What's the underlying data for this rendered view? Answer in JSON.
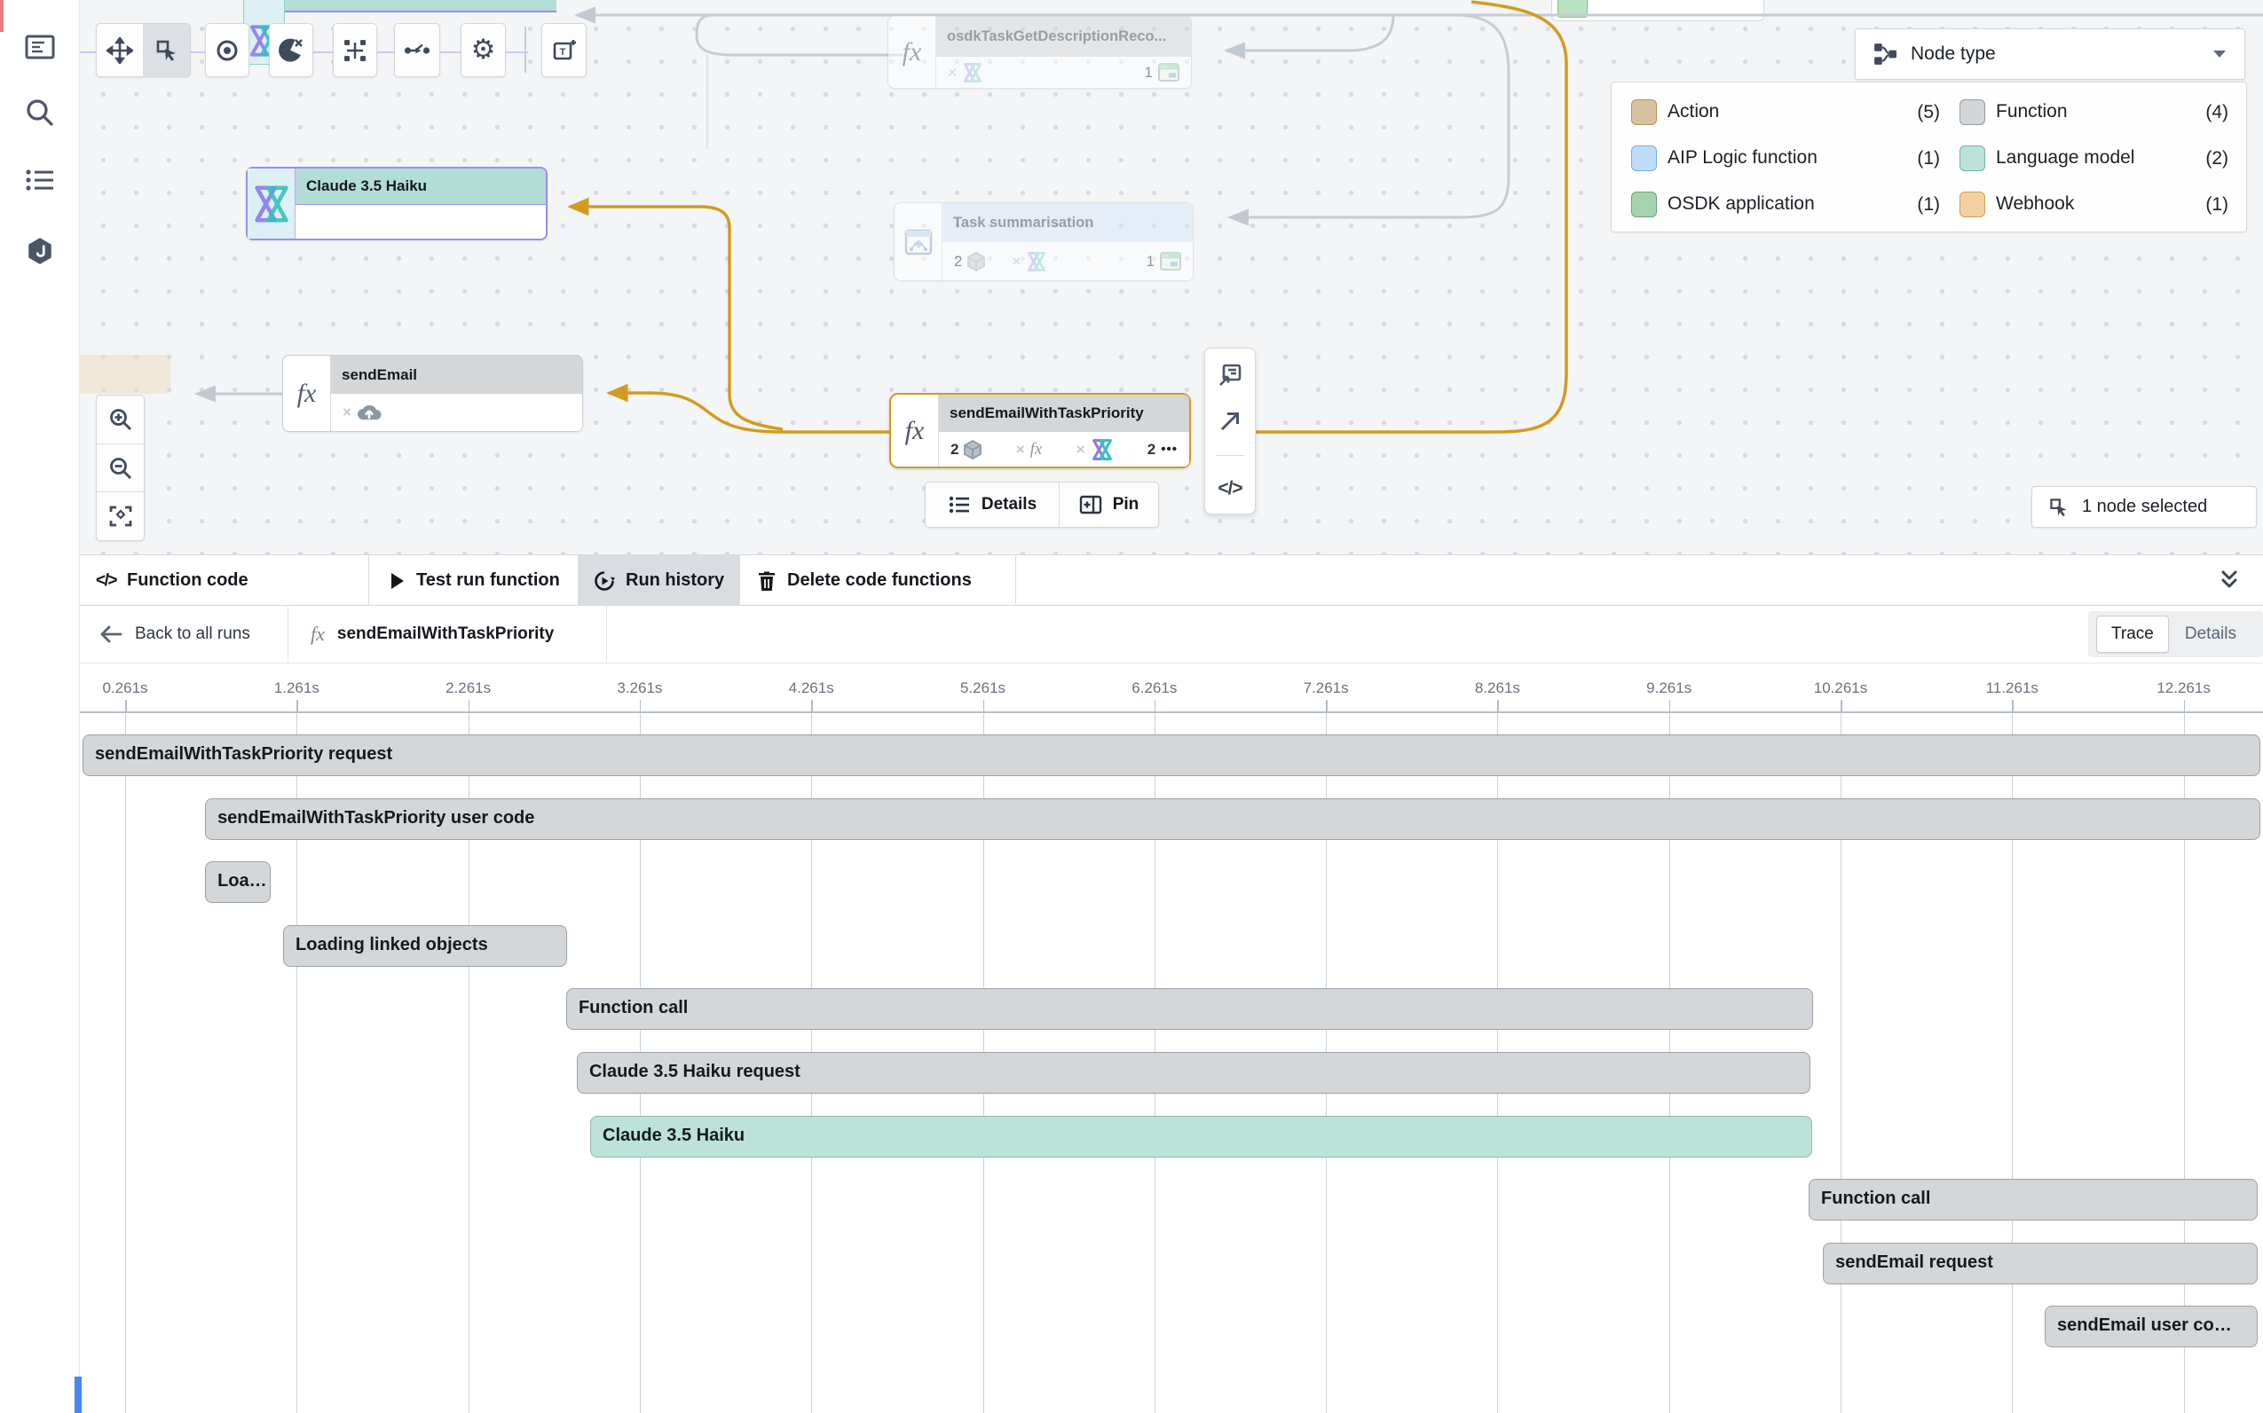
{
  "glyphs": {
    "multiply": "×",
    "ellipsis": "•••",
    "fx": "fx",
    "code": "</>"
  },
  "canvas": {
    "nodes": {
      "claude": {
        "title": "Claude 3.5 Haiku"
      },
      "osdk": {
        "title": "osdkTaskGetDescriptionReco...",
        "right_count": "1"
      },
      "task": {
        "title": "Task summarisation",
        "left_count": "2",
        "right_count": "1"
      },
      "send_email": {
        "title": "sendEmail"
      },
      "priority": {
        "title": "sendEmailWithTaskPriority",
        "left_count": "2",
        "right_count": "2"
      }
    },
    "node_actions": {
      "details": "Details",
      "pin": "Pin"
    },
    "selection_status": "1 node selected",
    "node_type_label": "Node type",
    "legend": {
      "col1": [
        {
          "label": "Action",
          "count": "(5)",
          "color": "#d9c39e",
          "border": "#b1925f"
        },
        {
          "label": "AIP Logic function",
          "count": "(1)",
          "color": "#bfdcfa",
          "border": "#79aee3"
        },
        {
          "label": "OSDK application",
          "count": "(1)",
          "color": "#a6d3ae",
          "border": "#67a374"
        }
      ],
      "col2": [
        {
          "label": "Function",
          "count": "(4)",
          "color": "#d3d6d9",
          "border": "#939ba4"
        },
        {
          "label": "Language model",
          "count": "(2)",
          "color": "#bce2d9",
          "border": "#73b2a3"
        },
        {
          "label": "Webhook",
          "count": "(1)",
          "color": "#f3d1a2",
          "border": "#cf9c55"
        }
      ]
    },
    "edge_colors": {
      "active": "#d39b1d",
      "inactive": "#c3c9d1"
    }
  },
  "panel": {
    "tabs": {
      "function_code": "Function code",
      "test_run": "Test run function",
      "run_history": "Run history",
      "delete": "Delete code functions"
    },
    "back": "Back to all runs",
    "function_name": "sendEmailWithTaskPriority",
    "view_toggle": {
      "trace": "Trace",
      "details": "Details"
    }
  },
  "chart_data": {
    "type": "gantt",
    "description": "Function run trace timeline (waterfall of spans)",
    "time_unit": "s",
    "axis": {
      "tick_seconds": [
        0.261,
        1.261,
        2.261,
        3.261,
        4.261,
        5.261,
        6.261,
        7.261,
        8.261,
        9.261,
        10.261,
        11.261,
        12.261
      ],
      "tick_labels": [
        "0.261s",
        "1.261s",
        "2.261s",
        "3.261s",
        "4.261s",
        "5.261s",
        "6.261s",
        "7.261s",
        "8.261s",
        "9.261s",
        "10.261s",
        "11.261s",
        "12.261s"
      ],
      "grid": true
    },
    "spans": [
      {
        "label": "sendEmailWithTaskPriority request",
        "start_s": 0.013,
        "end_s": 12.7,
        "kind": "default"
      },
      {
        "label": "sendEmailWithTaskPriority user code",
        "start_s": 0.727,
        "end_s": 12.7,
        "kind": "default"
      },
      {
        "label": "Loa…",
        "start_s": 0.727,
        "end_s": 1.1,
        "kind": "default"
      },
      {
        "label": "Loading linked objects",
        "start_s": 1.182,
        "end_s": 2.827,
        "kind": "default"
      },
      {
        "label": "Function call",
        "start_s": 2.832,
        "end_s": 10.091,
        "kind": "default"
      },
      {
        "label": "Claude 3.5 Haiku request",
        "start_s": 2.894,
        "end_s": 10.075,
        "kind": "default"
      },
      {
        "label": "Claude 3.5 Haiku",
        "start_s": 2.972,
        "end_s": 10.085,
        "kind": "highlight"
      },
      {
        "label": "Function call",
        "start_s": 10.075,
        "end_s": 12.683,
        "kind": "default"
      },
      {
        "label": "sendEmail request",
        "start_s": 10.158,
        "end_s": 12.683,
        "kind": "default"
      },
      {
        "label": "sendEmail user co…",
        "start_s": 11.451,
        "end_s": 12.683,
        "kind": "default"
      }
    ],
    "colors": {
      "default": "#d4d6d8",
      "highlight": "#bce2d9"
    }
  }
}
